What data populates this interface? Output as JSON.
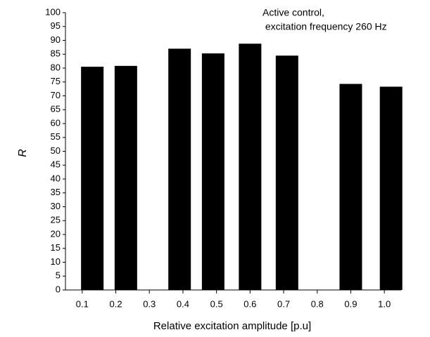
{
  "chart_data": {
    "type": "bar",
    "annotation": [
      "Active control,",
      " excitation frequency 260 Hz"
    ],
    "x_label": "Relative excitation amplitude [p.u]",
    "y_label": "R",
    "x": [
      0.13,
      0.23,
      0.39,
      0.49,
      0.6,
      0.71,
      0.9,
      1.02
    ],
    "values": [
      80.5,
      80.8,
      87,
      85.3,
      88.8,
      84.5,
      74.3,
      73.3
    ],
    "color": "#000000",
    "xlim": [
      0.05,
      1.05
    ],
    "xticks": [
      0.1,
      0.2,
      0.3,
      0.4,
      0.5,
      0.6,
      0.7,
      0.8,
      0.9,
      {
        "value": 1,
        "label": "1.0"
      }
    ],
    "ylim": [
      0,
      100
    ],
    "yticks": [
      0,
      5,
      10,
      15,
      20,
      25,
      30,
      35,
      40,
      45,
      50,
      55,
      60,
      65,
      70,
      75,
      80,
      85,
      90,
      95,
      100
    ]
  }
}
